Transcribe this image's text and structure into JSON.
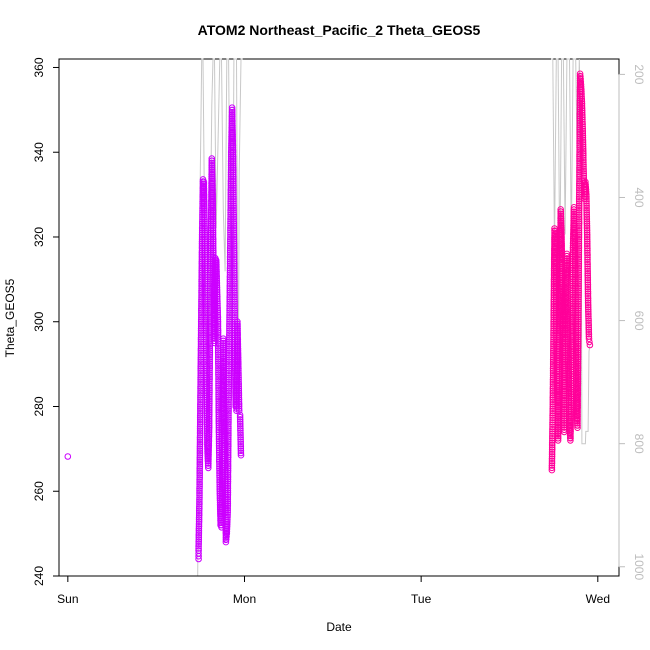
{
  "chart_data": {
    "type": "scatter",
    "title": "ATOM2 Northeast_Pacific_2 Theta_GEOS5",
    "xlabel": "Date",
    "ylabel": "Theta_GEOS5",
    "x_ticks": [
      "Sun",
      "Mon",
      "Tue",
      "Wed"
    ],
    "y_ticks": [
      "240",
      "260",
      "280",
      "300",
      "320",
      "340",
      "360"
    ],
    "y_right_ticks": [
      "200",
      "400",
      "600",
      "800",
      "1000"
    ],
    "xlim_days": [
      -0.05,
      3.12
    ],
    "ylim": [
      240,
      362
    ],
    "y_right_lim": [
      1015,
      175
    ],
    "colors": {
      "theta_early": "#cc00ff",
      "theta_late": "#ff0099",
      "pressure_line": "#c8c8c8",
      "right_axis": "#bdbdbd"
    },
    "series": [
      {
        "points": [
          [
            0.0,
            268.2
          ],
          [
            0.74,
            244
          ],
          [
            0.74,
            246
          ],
          [
            0.745,
            258
          ],
          [
            0.75,
            280
          ],
          [
            0.755,
            300
          ],
          [
            0.76,
            320
          ],
          [
            0.765,
            333.6
          ],
          [
            0.77,
            333
          ],
          [
            0.775,
            320
          ],
          [
            0.78,
            300
          ],
          [
            0.785,
            290
          ],
          [
            0.79,
            270
          ],
          [
            0.795,
            265.5
          ],
          [
            0.8,
            275
          ],
          [
            0.805,
            300
          ],
          [
            0.81,
            320
          ],
          [
            0.815,
            338.5
          ],
          [
            0.82,
            330
          ],
          [
            0.825,
            310
          ],
          [
            0.83,
            295
          ],
          [
            0.835,
            315
          ],
          [
            0.84,
            314.5
          ],
          [
            0.85,
            300
          ],
          [
            0.855,
            275
          ],
          [
            0.86,
            260
          ],
          [
            0.865,
            252
          ],
          [
            0.87,
            251.5
          ],
          [
            0.875,
            275
          ],
          [
            0.88,
            296
          ],
          [
            0.885,
            280
          ],
          [
            0.89,
            265
          ],
          [
            0.895,
            248
          ],
          [
            0.9,
            250
          ],
          [
            0.905,
            255
          ],
          [
            0.91,
            280
          ],
          [
            0.915,
            300
          ],
          [
            0.92,
            320
          ],
          [
            0.925,
            340
          ],
          [
            0.93,
            350.5
          ],
          [
            0.935,
            340
          ],
          [
            0.94,
            320
          ],
          [
            0.945,
            300
          ],
          [
            0.95,
            280
          ],
          [
            0.955,
            279
          ],
          [
            0.96,
            300
          ],
          [
            0.965,
            290
          ],
          [
            0.97,
            279
          ],
          [
            0.975,
            278
          ],
          [
            0.98,
            268.5
          ]
        ]
      },
      {
        "points": [
          [
            2.74,
            265
          ],
          [
            2.745,
            280
          ],
          [
            2.75,
            300
          ],
          [
            2.755,
            322
          ],
          [
            2.76,
            320
          ],
          [
            2.765,
            300
          ],
          [
            2.77,
            285
          ],
          [
            2.775,
            272
          ],
          [
            2.78,
            285
          ],
          [
            2.785,
            300
          ],
          [
            2.79,
            326.5
          ],
          [
            2.795,
            320
          ],
          [
            2.8,
            305
          ],
          [
            2.805,
            290
          ],
          [
            2.81,
            274
          ],
          [
            2.815,
            290
          ],
          [
            2.82,
            310
          ],
          [
            2.825,
            316
          ],
          [
            2.83,
            305
          ],
          [
            2.835,
            290
          ],
          [
            2.84,
            275
          ],
          [
            2.845,
            272
          ],
          [
            2.85,
            285
          ],
          [
            2.855,
            300
          ],
          [
            2.86,
            318
          ],
          [
            2.865,
            327
          ],
          [
            2.87,
            320
          ],
          [
            2.875,
            300
          ],
          [
            2.88,
            280
          ],
          [
            2.885,
            275
          ],
          [
            2.89,
            300
          ],
          [
            2.895,
            330
          ],
          [
            2.9,
            358.5
          ],
          [
            2.905,
            356
          ],
          [
            2.91,
            352
          ],
          [
            2.915,
            345
          ],
          [
            2.92,
            335
          ],
          [
            2.925,
            329
          ],
          [
            2.93,
            333
          ],
          [
            2.935,
            330
          ],
          [
            2.94,
            320
          ],
          [
            2.945,
            305
          ],
          [
            2.95,
            296
          ],
          [
            2.955,
            294.5
          ]
        ]
      },
      {
        "pressure": [
          [
            0.7,
            1015
          ],
          [
            0.735,
            1015
          ],
          [
            0.745,
            600
          ],
          [
            0.75,
            360
          ],
          [
            0.758,
            175
          ],
          [
            0.765,
            175
          ],
          [
            0.775,
            460
          ],
          [
            0.79,
            700
          ],
          [
            0.805,
            500
          ],
          [
            0.815,
            250
          ],
          [
            0.822,
            175
          ],
          [
            0.83,
            175
          ],
          [
            0.84,
            450
          ],
          [
            0.86,
            175
          ],
          [
            0.87,
            175
          ],
          [
            0.88,
            420
          ],
          [
            0.89,
            520
          ],
          [
            0.9,
            175
          ],
          [
            0.91,
            175
          ],
          [
            0.92,
            520
          ],
          [
            0.93,
            680
          ],
          [
            0.94,
            175
          ],
          [
            0.955,
            175
          ],
          [
            0.965,
            760
          ],
          [
            0.97,
            360
          ],
          [
            0.98,
            175
          ],
          [
            0.99,
            175
          ],
          [
            2.735,
            175
          ],
          [
            2.745,
            175
          ],
          [
            2.755,
            480
          ],
          [
            2.765,
            175
          ],
          [
            2.775,
            175
          ],
          [
            2.785,
            520
          ],
          [
            2.795,
            175
          ],
          [
            2.805,
            175
          ],
          [
            2.815,
            460
          ],
          [
            2.825,
            175
          ],
          [
            2.84,
            175
          ],
          [
            2.85,
            470
          ],
          [
            2.86,
            175
          ],
          [
            2.875,
            175
          ],
          [
            2.885,
            380
          ],
          [
            2.895,
            175
          ],
          [
            2.905,
            300
          ],
          [
            2.91,
            800
          ],
          [
            2.93,
            800
          ],
          [
            2.932,
            780
          ],
          [
            2.945,
            780
          ],
          [
            2.95,
            650
          ],
          [
            2.955,
            640
          ]
        ]
      }
    ]
  }
}
